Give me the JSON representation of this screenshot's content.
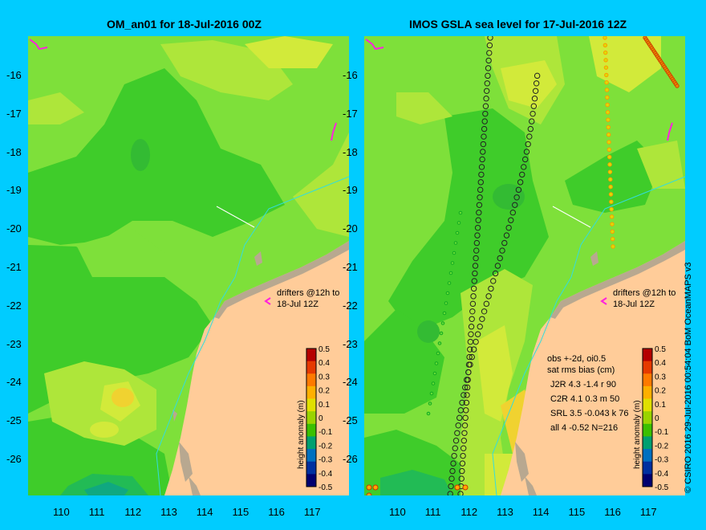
{
  "left_title": "OM_an01 for 18-Jul-2016 00Z",
  "right_title": "IMOS GSLA sea level  for 17-Jul-2016 12Z",
  "y_ticks": [
    "-16",
    "-17",
    "-18",
    "-19",
    "-20",
    "-21",
    "-22",
    "-23",
    "-24",
    "-25",
    "-26"
  ],
  "x_ticks": [
    "110",
    "111",
    "112",
    "113",
    "114",
    "115",
    "116",
    "117"
  ],
  "drifters_line1": "drifters @12h to",
  "drifters_line2": "18-Jul 12Z",
  "colorbar": {
    "title": "height anomaly (m)",
    "labels": [
      "0.5",
      "0.4",
      "0.3",
      "0.2",
      "0.1",
      "0",
      "-0.1",
      "-0.2",
      "-0.3",
      "-0.4",
      "-0.5"
    ],
    "colors": [
      "#b50000",
      "#e63a00",
      "#ff7a00",
      "#ffb000",
      "#e0e000",
      "#9ad400",
      "#3cc000",
      "#00a070",
      "#0070c0",
      "#0030a0",
      "#000070"
    ]
  },
  "stats": {
    "line1": "obs +-2d, oi0.5",
    "line2": "sat rms bias (cm)",
    "rows": [
      "J2R   4.3  -1.4  r 90",
      "C2R   4.1  0.3  m 50",
      "SRL   3.5  -0.043  k 76",
      "all    4  -0.52  N=216"
    ]
  },
  "credit": "© CSIRO 2016   29-Jul-2016 00:54:04 BoM OceanMAPS v3",
  "colors": {
    "background": "#00ccff",
    "land": "#ffcc99",
    "reef": "#b8a890",
    "field_base": "#66dd33"
  }
}
